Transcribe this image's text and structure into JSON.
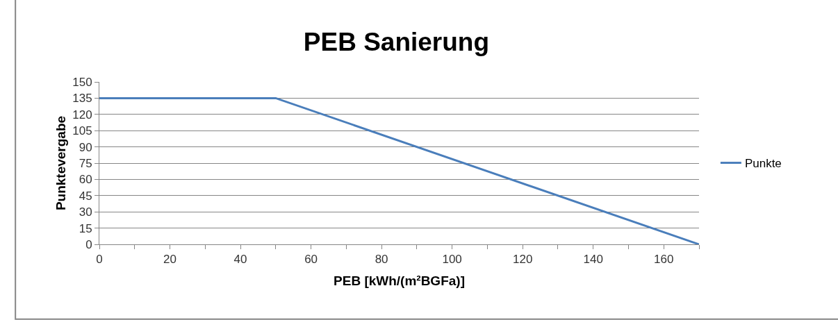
{
  "chart_data": {
    "type": "line",
    "title": "PEB Sanierung",
    "xlabel": "PEB [kWh/(m²BGFa)]",
    "ylabel": "Punktevergabe",
    "series": [
      {
        "name": "Punkte",
        "color": "#4a7ebb",
        "x": [
          0,
          50,
          170
        ],
        "values": [
          135,
          135,
          0
        ]
      }
    ],
    "xlim": [
      0,
      170
    ],
    "xticks": [
      0,
      {
        "value": 10,
        "label": null
      },
      20,
      {
        "value": 30,
        "label": null
      },
      40,
      {
        "value": 50,
        "label": null
      },
      60,
      {
        "value": 70,
        "label": null
      },
      80,
      {
        "value": 90,
        "label": null
      },
      100,
      {
        "value": 110,
        "label": null
      },
      120,
      {
        "value": 130,
        "label": null
      },
      140,
      {
        "value": 150,
        "label": null
      },
      160,
      {
        "value": 170,
        "label": null
      }
    ],
    "ylim": [
      0,
      150
    ],
    "yticks": [
      0,
      15,
      30,
      45,
      60,
      75,
      90,
      105,
      120,
      135,
      150
    ],
    "grid": "y",
    "legend": "right",
    "marker": "none",
    "line_style": "solid"
  }
}
